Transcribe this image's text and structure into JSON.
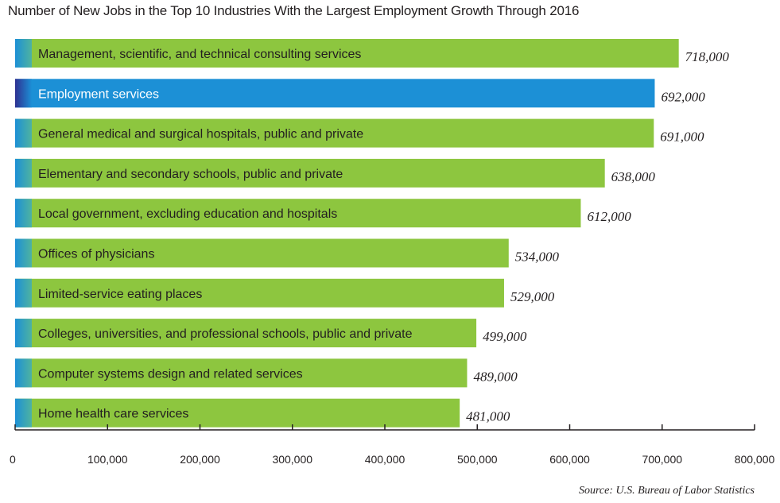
{
  "chart_data": {
    "type": "bar",
    "orientation": "horizontal",
    "title": "Number of New Jobs in the Top 10 Industries With the Largest Employment Growth Through 2016",
    "categories": [
      "Management, scientific, and technical consulting services",
      "Employment services",
      "General medical and surgical hospitals, public and private",
      "Elementary and secondary schools, public and private",
      "Local government, excluding education and hospitals",
      "Offices of physicians",
      "Limited-service eating places",
      "Colleges, universities, and professional schools, public and private",
      "Computer systems design and related services",
      "Home health care services"
    ],
    "values": [
      718000,
      692000,
      691000,
      638000,
      612000,
      534000,
      529000,
      499000,
      489000,
      481000
    ],
    "value_labels": [
      "718,000",
      "692,000",
      "691,000",
      "638,000",
      "612,000",
      "534,000",
      "529,000",
      "499,000",
      "489,000",
      "481,000"
    ],
    "highlight_index": 1,
    "xlim": [
      0,
      800000
    ],
    "xticks": [
      0,
      100000,
      200000,
      300000,
      400000,
      500000,
      600000,
      700000,
      800000
    ],
    "xtick_labels": [
      "0",
      "100,000",
      "200,000",
      "300,000",
      "400,000",
      "500,000",
      "600,000",
      "700,000",
      "800,000"
    ],
    "grid": false,
    "colors": {
      "bar": "#8dc63f",
      "highlight_bar": "#1c90d6",
      "accent_strip": "#1c90d6",
      "highlight_accent": "#2e3192"
    },
    "source": "Source: U.S. Bureau of Labor Statistics"
  }
}
